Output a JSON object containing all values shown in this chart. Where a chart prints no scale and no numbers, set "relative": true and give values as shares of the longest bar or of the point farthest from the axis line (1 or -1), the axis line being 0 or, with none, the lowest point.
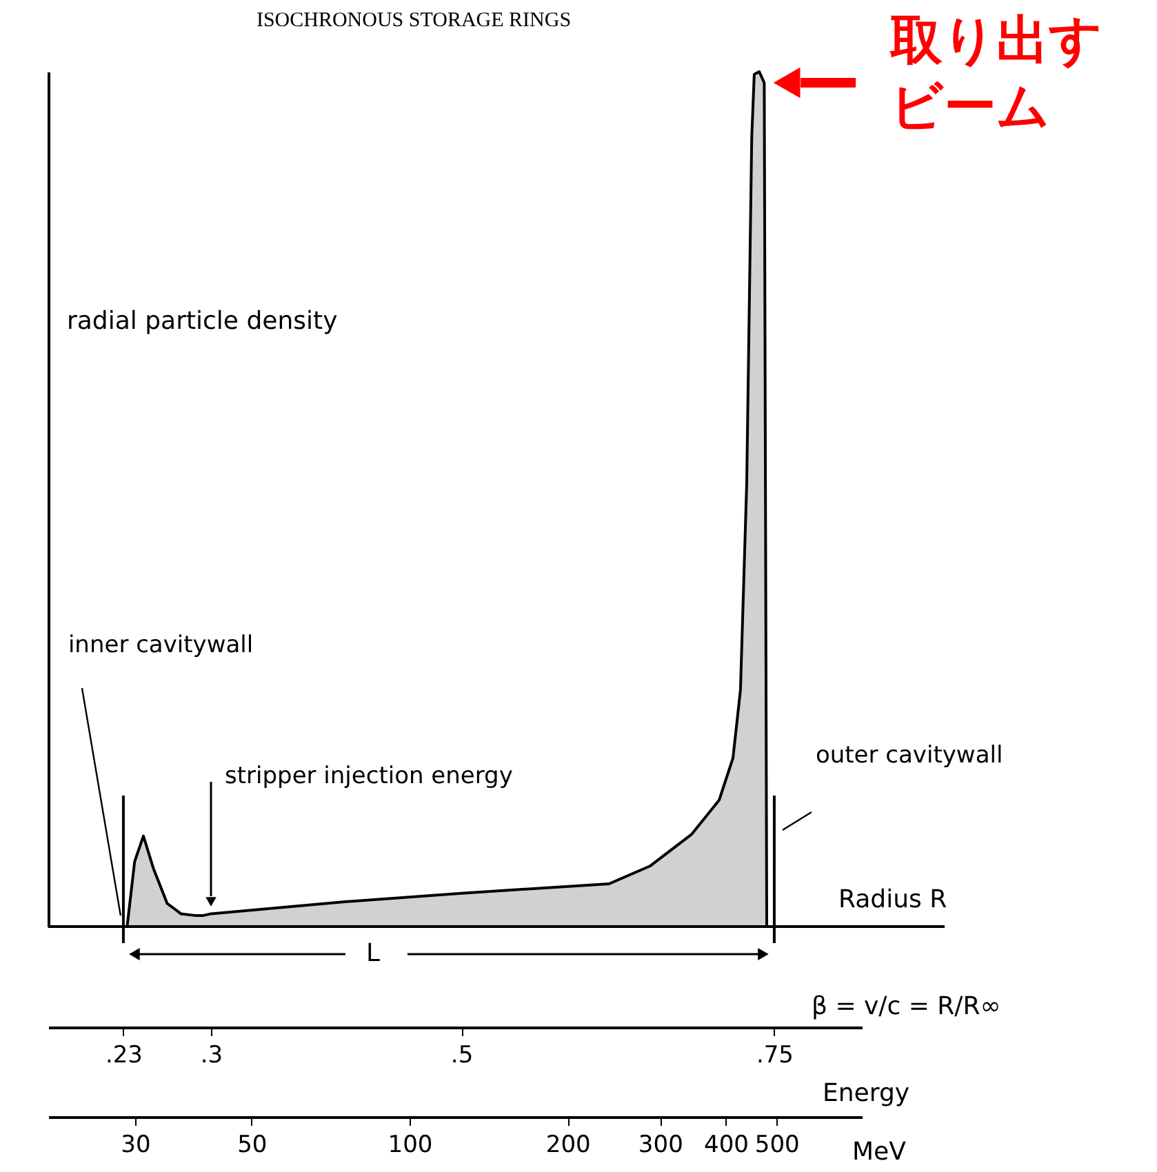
{
  "chart_data": {
    "type": "area",
    "title": "ISOCHRONOUS STORAGE RINGS",
    "ylabel": "radial particle density",
    "xlabel": "β = v/c = R/R∞",
    "x2label": "Energy",
    "relative": true,
    "color": "#000000",
    "grid": false,
    "x": [
      0.233,
      0.239,
      0.246,
      0.254,
      0.265,
      0.276,
      0.287,
      0.294,
      0.3,
      0.407,
      0.5,
      0.618,
      0.651,
      0.684,
      0.706,
      0.717,
      0.723,
      0.728,
      0.732,
      0.734,
      0.738,
      0.742,
      0.744
    ],
    "values": [
      0,
      0.076,
      0.106,
      0.068,
      0.027,
      0.015,
      0.013,
      0.013,
      0.015,
      0.029,
      0.039,
      0.05,
      0.071,
      0.108,
      0.148,
      0.197,
      0.277,
      0.519,
      0.923,
      0.997,
      1,
      0.987,
      0
    ],
    "xlim": [
      0.17,
      0.82
    ],
    "xticks": [
      {
        "value": 0.23,
        "label": ".23"
      },
      {
        "value": 0.3,
        "label": ".3"
      },
      {
        "value": 0.5,
        "label": ".5"
      },
      {
        "value": 0.75,
        "label": ".75"
      }
    ],
    "x2lim": [
      20.5,
      727
    ],
    "log": "x2",
    "x2ticks": [
      30,
      50,
      100,
      200,
      300,
      400,
      500
    ],
    "ref_lines": [
      {
        "axis": "x",
        "value": 0.23,
        "label": "inner cavitywall"
      },
      {
        "axis": "x",
        "value": 0.75,
        "label": "outer cavitywall"
      }
    ],
    "annotations": [
      {
        "text": "取り出すビーム",
        "x": 0.738,
        "y": 1
      },
      "stripper injection energy",
      "Radius R",
      "L",
      "MeV"
    ]
  }
}
